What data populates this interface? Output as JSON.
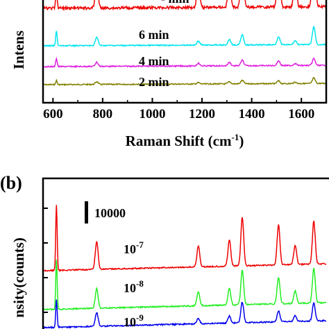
{
  "chart_data": [
    {
      "panel_label": "",
      "type": "line",
      "xlabel": "Raman Shift (cm",
      "xlabel_sup": "-1",
      "xlabel_tail": ")",
      "ylabel": "Intens",
      "xlim": [
        560,
        1700
      ],
      "xticks": [
        "600",
        "800",
        "1000",
        "1200",
        "1400",
        "1600"
      ],
      "xtick_values": [
        600,
        800,
        1000,
        1200,
        1400,
        1600
      ],
      "peaks": [
        614,
        776,
        1185,
        1310,
        1362,
        1508,
        1575,
        1650
      ],
      "series": [
        {
          "label": "2 min",
          "color": "#808000",
          "baseline": 0.0,
          "amplitudes": [
            6,
            4,
            2,
            3,
            5,
            4,
            2,
            8
          ]
        },
        {
          "label": "4 min",
          "color": "#e01ee0",
          "baseline": 25,
          "amplitudes": [
            12,
            6,
            4,
            5,
            8,
            7,
            3,
            10
          ]
        },
        {
          "label": "6 min",
          "color": "#00e5ee",
          "baseline": 55,
          "amplitudes": [
            22,
            12,
            6,
            8,
            15,
            12,
            6,
            26
          ]
        },
        {
          "label": "",
          "color": "#ee0000",
          "baseline": 110,
          "amplitudes": [
            30,
            35,
            40,
            35,
            95,
            75,
            40,
            130
          ]
        }
      ],
      "partial_label": "- min"
    },
    {
      "panel_label": "(b)",
      "type": "line",
      "ylabel": "nsity(counts)",
      "scale_bar_label": "10000",
      "peaks": [
        614,
        776,
        1185,
        1310,
        1362,
        1508,
        1575,
        1650
      ],
      "series": [
        {
          "label": "10",
          "exponent": "-7",
          "color": "#ee0000",
          "amplitudes": [
            95,
            40,
            30,
            38,
            70,
            58,
            28,
            62
          ]
        },
        {
          "label": "10",
          "exponent": "-8",
          "color": "#22ee22",
          "amplitudes": [
            72,
            28,
            20,
            24,
            50,
            38,
            18,
            50
          ]
        },
        {
          "label": "10",
          "exponent": "-9",
          "color": "#0000ee",
          "amplitudes": [
            40,
            20,
            8,
            10,
            30,
            16,
            8,
            26
          ]
        }
      ]
    }
  ]
}
